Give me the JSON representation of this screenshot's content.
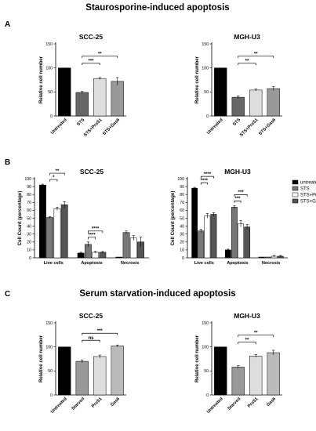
{
  "sections": [
    {
      "letter": "A",
      "title": "Staurosporine-induced apoptosis"
    },
    {
      "letter": "B",
      "title": ""
    },
    {
      "letter": "C",
      "title": "Serum starvation-induced apoptosis"
    }
  ],
  "chart_data": [
    {
      "id": "A1",
      "type": "bar",
      "title": "SCC-25",
      "ylabel": "Relative cell number",
      "categories": [
        "Untreated",
        "STS",
        "STS+ProS1",
        "STS+Gas6"
      ],
      "values": [
        100,
        49,
        78,
        72
      ],
      "errors": [
        0,
        2,
        2,
        8
      ],
      "colors": [
        "#000000",
        "#666666",
        "#dddddd",
        "#999999"
      ],
      "ylim": [
        0,
        150
      ],
      "yticks": [
        0,
        50,
        100,
        150
      ],
      "significance": [
        {
          "from": 1,
          "to": 2,
          "label": "***"
        },
        {
          "from": 1,
          "to": 3,
          "label": "**"
        }
      ]
    },
    {
      "id": "A2",
      "type": "bar",
      "title": "MGH-U3",
      "ylabel": "Relative cell number",
      "categories": [
        "Untreated",
        "STS",
        "STS+ProS1",
        "STS+Gas6"
      ],
      "values": [
        100,
        39,
        54,
        57
      ],
      "errors": [
        0,
        3,
        2,
        4
      ],
      "colors": [
        "#000000",
        "#666666",
        "#dddddd",
        "#999999"
      ],
      "ylim": [
        0,
        150
      ],
      "yticks": [
        0,
        50,
        100,
        150
      ],
      "significance": [
        {
          "from": 1,
          "to": 2,
          "label": "**"
        },
        {
          "from": 1,
          "to": 3,
          "label": "**"
        }
      ]
    },
    {
      "id": "B1",
      "type": "bar",
      "title": "SCC-25",
      "ylabel": "Cell Count (percentage)",
      "categories": [
        "Live cells",
        "Apoptosis",
        "Necrosis"
      ],
      "series": [
        {
          "name": "untreated",
          "values": [
            92,
            6,
            1
          ],
          "errors": [
            1,
            1,
            0
          ]
        },
        {
          "name": "STS",
          "values": [
            51,
            17,
            32
          ],
          "errors": [
            1,
            3,
            2
          ]
        },
        {
          "name": "STS+ProS1",
          "values": [
            62,
            7,
            25
          ],
          "errors": [
            2,
            1,
            3
          ]
        },
        {
          "name": "STS+Gas6",
          "values": [
            67,
            7,
            20
          ],
          "errors": [
            4,
            1,
            6
          ]
        }
      ],
      "ylim": [
        0,
        100
      ],
      "yticks": [
        0,
        10,
        20,
        30,
        40,
        50,
        60,
        70,
        80,
        90,
        100
      ],
      "significance": [
        {
          "category": 0,
          "from": 1,
          "to": 2,
          "label": "*"
        },
        {
          "category": 0,
          "from": 1,
          "to": 3,
          "label": "**"
        },
        {
          "category": 1,
          "from": 1,
          "to": 2,
          "label": "****"
        },
        {
          "category": 1,
          "from": 1,
          "to": 3,
          "label": "****"
        }
      ]
    },
    {
      "id": "B2",
      "type": "bar",
      "title": "MGH-U3",
      "ylabel": "Cell Count (percentage)",
      "categories": [
        "Live cells",
        "Apoptosis",
        "Necrosis"
      ],
      "series": [
        {
          "name": "untreated",
          "values": [
            88,
            10,
            1
          ],
          "errors": [
            1,
            1,
            0
          ]
        },
        {
          "name": "STS",
          "values": [
            34,
            64,
            1
          ],
          "errors": [
            2,
            2,
            0
          ]
        },
        {
          "name": "STS+ProS1",
          "values": [
            53,
            43,
            2
          ],
          "errors": [
            3,
            4,
            1
          ]
        },
        {
          "name": "STS+Gas6",
          "values": [
            55,
            39,
            2
          ],
          "errors": [
            2,
            3,
            1
          ]
        }
      ],
      "ylim": [
        0,
        100
      ],
      "yticks": [
        0,
        10,
        20,
        30,
        40,
        50,
        60,
        70,
        80,
        90,
        100
      ],
      "legend": {
        "position": "top-right",
        "entries": [
          "untreated",
          "STS",
          "STS+ProS1",
          "STS+Gas6"
        ]
      },
      "significance": [
        {
          "category": 0,
          "from": 1,
          "to": 2,
          "label": "****"
        },
        {
          "category": 0,
          "from": 1,
          "to": 3,
          "label": "****"
        },
        {
          "category": 1,
          "from": 1,
          "to": 2,
          "label": "***"
        },
        {
          "category": 1,
          "from": 1,
          "to": 3,
          "label": "***"
        }
      ]
    },
    {
      "id": "C1",
      "type": "bar",
      "title": "SCC-25",
      "ylabel": "Relative cell number",
      "categories": [
        "Untreated",
        "Starved",
        "ProS1",
        "Gas6"
      ],
      "values": [
        100,
        70,
        80,
        102
      ],
      "errors": [
        0,
        3,
        3,
        2
      ],
      "colors": [
        "#000000",
        "#999999",
        "#dddddd",
        "#bbbbbb"
      ],
      "ylim": [
        0,
        150
      ],
      "yticks": [
        0,
        50,
        100,
        150
      ],
      "significance": [
        {
          "from": 1,
          "to": 2,
          "label": "ns"
        },
        {
          "from": 1,
          "to": 3,
          "label": "***"
        }
      ]
    },
    {
      "id": "C2",
      "type": "bar",
      "title": "MGH-U3",
      "ylabel": "Relative cell number",
      "categories": [
        "Untreated",
        "Starved",
        "ProS1",
        "Gas6"
      ],
      "values": [
        100,
        58,
        81,
        88
      ],
      "errors": [
        0,
        3,
        3,
        5
      ],
      "colors": [
        "#000000",
        "#999999",
        "#dddddd",
        "#bbbbbb"
      ],
      "ylim": [
        0,
        150
      ],
      "yticks": [
        0,
        50,
        100,
        150
      ],
      "significance": [
        {
          "from": 1,
          "to": 2,
          "label": "**"
        },
        {
          "from": 1,
          "to": 3,
          "label": "**"
        }
      ]
    }
  ],
  "grouped_colors": [
    "#000000",
    "#777777",
    "#ffffff",
    "#555555"
  ]
}
